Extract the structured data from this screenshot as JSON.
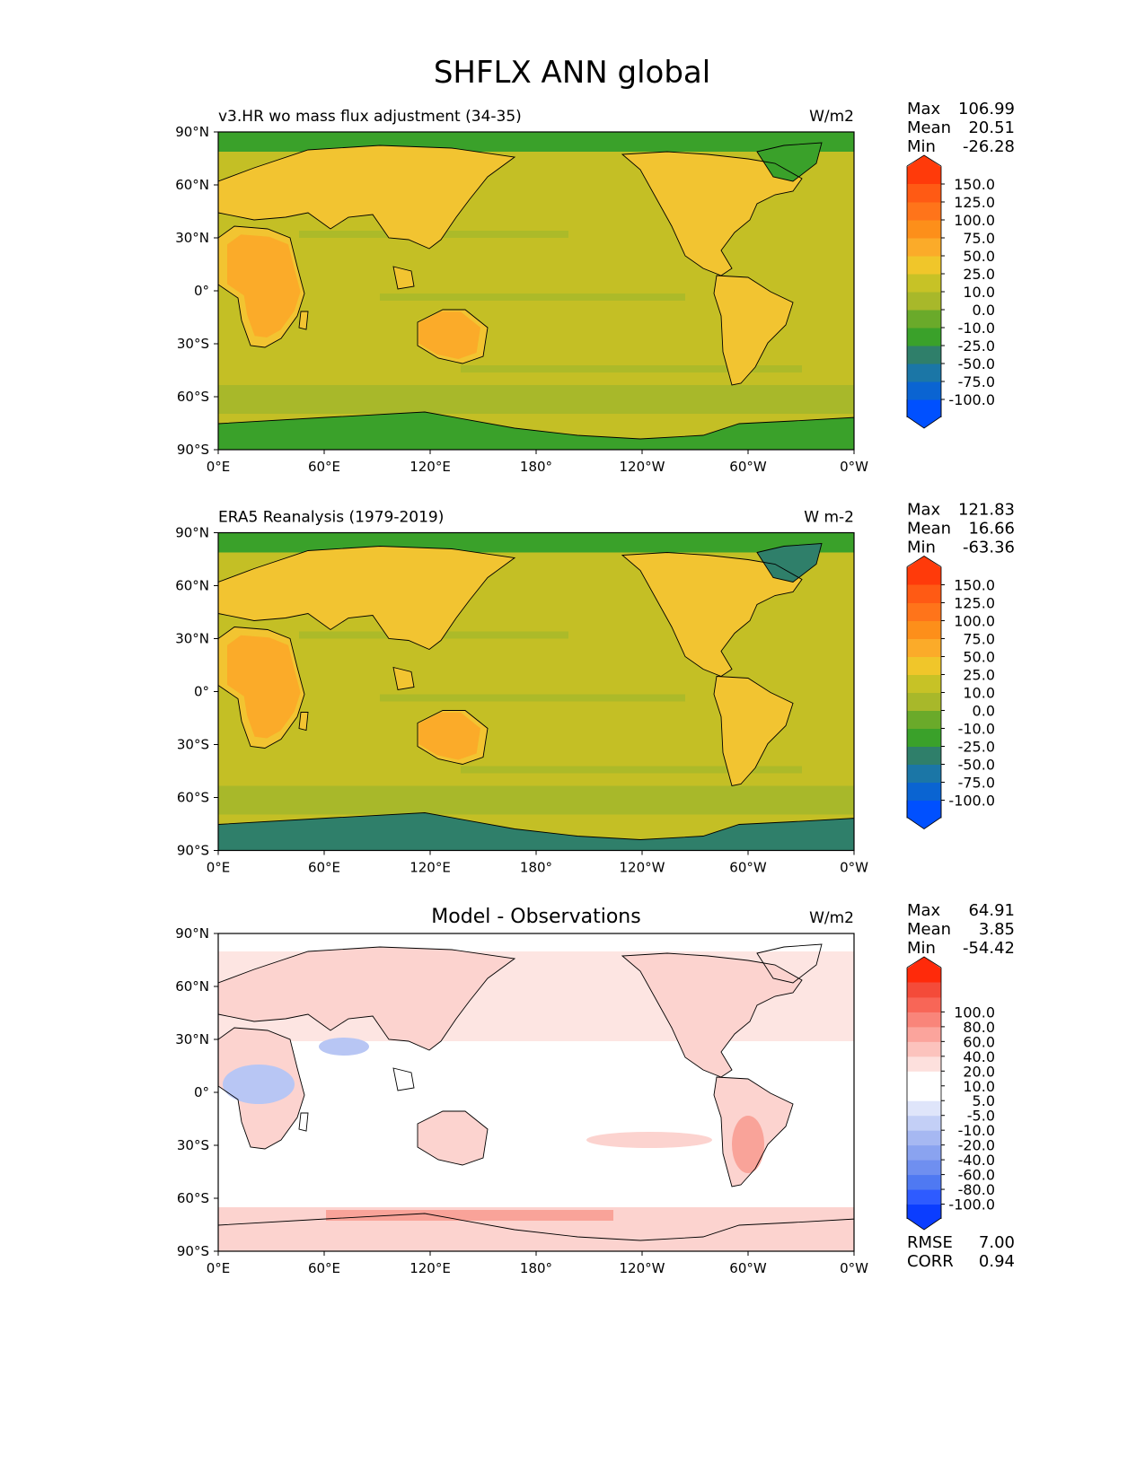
{
  "figure": {
    "title": "SHFLX ANN global"
  },
  "stats_labels": {
    "max": "Max",
    "mean": "Mean",
    "min": "Min",
    "rmse": "RMSE",
    "corr": "CORR"
  },
  "colors": {
    "abs_levels": [
      "#0050ff",
      "#0a64d2",
      "#1b76a6",
      "#2f7f6a",
      "#3aa12a",
      "#6aaa2a",
      "#a8b82a",
      "#c7c226",
      "#f0c62a",
      "#fbab29",
      "#fd8f1a",
      "#ff741a",
      "#ff5a14",
      "#ff3a0a"
    ],
    "diff_levels": [
      "#0b3dff",
      "#2e5bff",
      "#4f79f2",
      "#6f8ff0",
      "#8aa3f0",
      "#a6b8f2",
      "#c3cff6",
      "#dfe5fa",
      "#ffffff",
      "#ffffff",
      "#fde0dd",
      "#fcc3bd",
      "#fba49c",
      "#f9857a",
      "#f86657",
      "#f44b39",
      "#ff2a0a"
    ],
    "land_abs": "#f2c431",
    "land_abs_hot": "#fbab29",
    "ocean_abs": "#c4bf25",
    "band_abs": "#a8b82a",
    "polar_abs": "#3aa12a",
    "polar_era": "#2f7f6a",
    "diff_pink": "#fcd3cf",
    "diff_red": "#f9a399",
    "diff_blue": "#b8c6f4",
    "diff_bg": "#ffffff",
    "coast": "#000000"
  },
  "panels": [
    {
      "id": "test",
      "title": "v3.HR wo mass flux adjustment (34-35)",
      "units": "W/m2",
      "stats": {
        "max": "106.99",
        "mean": "20.51",
        "min": "-26.28"
      },
      "colorbar": {
        "type": "abs",
        "levels": [
          -100.0,
          -75.0,
          -50.0,
          -25.0,
          -10.0,
          0.0,
          10.0,
          25.0,
          50.0,
          75.0,
          100.0,
          125.0,
          150.0
        ],
        "labels": [
          "-100.0",
          "-75.0",
          "-50.0",
          "-25.0",
          "-10.0",
          "0.0",
          "10.0",
          "25.0",
          "50.0",
          "75.0",
          "100.0",
          "125.0",
          "150.0"
        ]
      }
    },
    {
      "id": "ref",
      "title": "ERA5 Reanalysis (1979-2019)",
      "units": "W m-2",
      "stats": {
        "max": "121.83",
        "mean": "16.66",
        "min": "-63.36"
      },
      "colorbar": {
        "type": "abs",
        "levels": [
          -100.0,
          -75.0,
          -50.0,
          -25.0,
          -10.0,
          0.0,
          10.0,
          25.0,
          50.0,
          75.0,
          100.0,
          125.0,
          150.0
        ],
        "labels": [
          "-100.0",
          "-75.0",
          "-50.0",
          "-25.0",
          "-10.0",
          "0.0",
          "10.0",
          "25.0",
          "50.0",
          "75.0",
          "100.0",
          "125.0",
          "150.0"
        ]
      }
    },
    {
      "id": "diff",
      "title": "Model - Observations",
      "units": "W/m2",
      "stats": {
        "max": "64.91",
        "mean": "3.85",
        "min": "-54.42",
        "rmse": "7.00",
        "corr": "0.94"
      },
      "colorbar": {
        "type": "diff",
        "levels": [
          -100.0,
          -80.0,
          -60.0,
          -40.0,
          -20.0,
          -10.0,
          -5.0,
          5.0,
          10.0,
          20.0,
          40.0,
          60.0,
          80.0,
          100.0
        ],
        "labels": [
          "-100.0",
          "-80.0",
          "-60.0",
          "-40.0",
          "-20.0",
          "-10.0",
          "-5.0",
          "5.0",
          "10.0",
          "20.0",
          "40.0",
          "60.0",
          "80.0",
          "100.0"
        ]
      }
    }
  ],
  "chart_data": {
    "type": "heatmap",
    "title": "SHFLX ANN global",
    "projection": "PlateCarree (global, central longitude 180)",
    "xticks": [
      "0°E",
      "60°E",
      "120°E",
      "180°",
      "120°W",
      "60°W",
      "0°W"
    ],
    "yticks": [
      "90°N",
      "60°N",
      "30°N",
      "0°",
      "30°S",
      "60°S",
      "90°S"
    ],
    "xlim": [
      0,
      360
    ],
    "ylim": [
      -90,
      90
    ],
    "panels": [
      {
        "name": "v3.HR wo mass flux adjustment (34-35)",
        "units": "W/m2",
        "max": 106.99,
        "mean": 20.51,
        "min": -26.28
      },
      {
        "name": "ERA5 Reanalysis (1979-2019)",
        "units": "W m-2",
        "max": 121.83,
        "mean": 16.66,
        "min": -63.36
      },
      {
        "name": "Model - Observations",
        "units": "W/m2",
        "max": 64.91,
        "mean": 3.85,
        "min": -54.42,
        "rmse": 7.0,
        "corr": 0.94
      }
    ]
  }
}
